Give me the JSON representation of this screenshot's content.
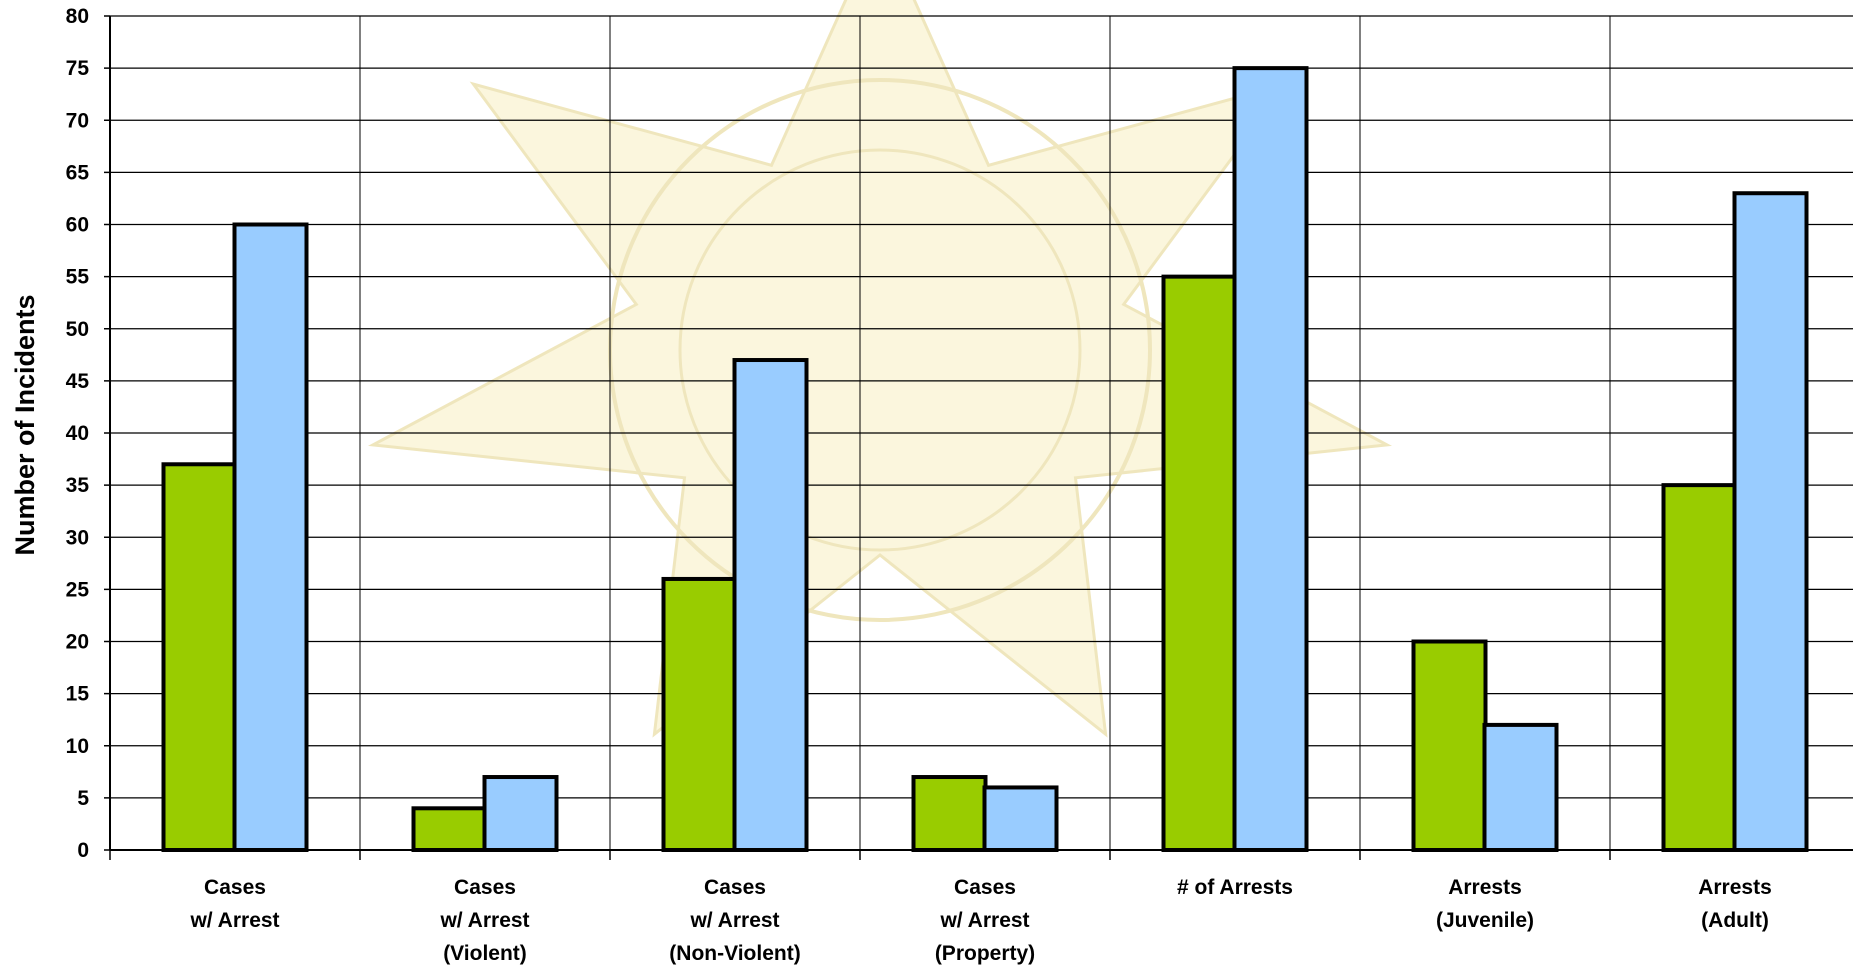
{
  "chart_data": {
    "type": "bar",
    "title": "",
    "xlabel": "",
    "ylabel": "Number of Incidents",
    "ylim": [
      0,
      80
    ],
    "ytick_step": 5,
    "grid": true,
    "legend": "none",
    "categories": [
      [
        "Cases",
        "w/ Arrest"
      ],
      [
        "Cases",
        "w/ Arrest",
        "(Violent)"
      ],
      [
        "Cases",
        "w/ Arrest",
        "(Non-Violent)"
      ],
      [
        "Cases",
        "w/ Arrest",
        "(Property)"
      ],
      [
        "# of Arrests"
      ],
      [
        "Arrests",
        "(Juvenile)"
      ],
      [
        "Arrests",
        "(Adult)"
      ]
    ],
    "series": [
      {
        "color": "#99cc00",
        "values": [
          37,
          4,
          26,
          7,
          55,
          20,
          35
        ]
      },
      {
        "color": "#99ccff",
        "values": [
          60,
          7,
          47,
          6,
          75,
          12,
          63
        ]
      }
    ],
    "background_watermark": "sheriff-badge-watermark"
  }
}
